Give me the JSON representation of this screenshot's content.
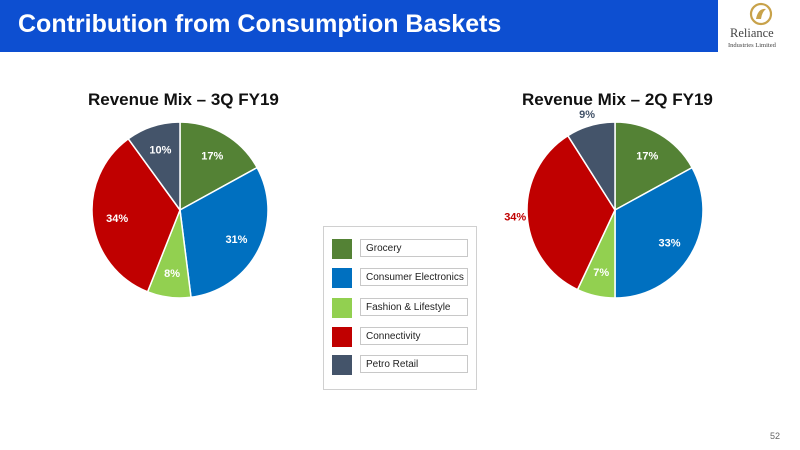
{
  "header": {
    "title": "Contribution from Consumption Baskets",
    "background": "#0d4fd1",
    "logo": {
      "name": "Reliance",
      "subtitle": "Industries Limited",
      "color": "#c8a24a"
    }
  },
  "legend": {
    "items": [
      {
        "label": "Grocery",
        "color": "#548235"
      },
      {
        "label": "Consumer Electronics",
        "color": "#0070c0"
      },
      {
        "label": "Fashion & Lifestyle",
        "color": "#92d050"
      },
      {
        "label": "Connectivity",
        "color": "#c00000"
      },
      {
        "label": "Petro Retail",
        "color": "#44546a"
      }
    ]
  },
  "chart_data": [
    {
      "type": "pie",
      "title": "Revenue Mix – 3Q FY19",
      "categories": [
        "Grocery",
        "Consumer Electronics",
        "Fashion & Lifestyle",
        "Connectivity",
        "Petro Retail"
      ],
      "values": [
        17,
        31,
        8,
        34,
        10
      ],
      "labels": [
        "17%",
        "31%",
        "8%",
        "34%",
        "10%"
      ],
      "colors": [
        "#548235",
        "#0070c0",
        "#92d050",
        "#c00000",
        "#44546a"
      ],
      "label_colors": [
        "#ffffff",
        "#ffffff",
        "#ffffff",
        "#ffffff",
        "#ffffff"
      ]
    },
    {
      "type": "pie",
      "title": "Revenue Mix – 2Q FY19",
      "categories": [
        "Grocery",
        "Consumer Electronics",
        "Fashion & Lifestyle",
        "Connectivity",
        "Petro Retail"
      ],
      "values": [
        17,
        33,
        7,
        34,
        9
      ],
      "labels": [
        "17%",
        "33%",
        "7%",
        "34%",
        "9%"
      ],
      "colors": [
        "#548235",
        "#0070c0",
        "#92d050",
        "#c00000",
        "#44546a"
      ],
      "label_colors": [
        "#ffffff",
        "#ffffff",
        "#ffffff",
        "#c00000",
        "#44546a"
      ]
    }
  ],
  "page_number": "52"
}
